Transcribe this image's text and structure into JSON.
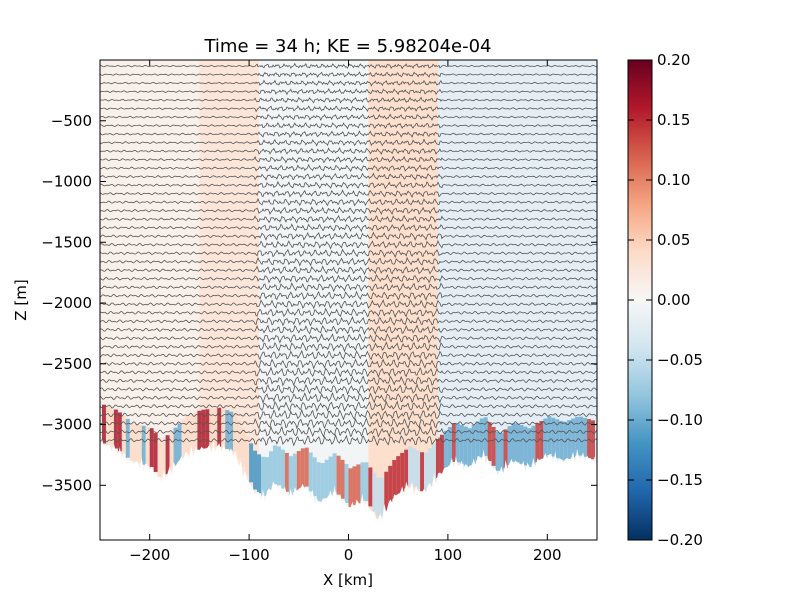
{
  "chart_data": {
    "type": "heatmap",
    "title": "Time = 34 h; KE = 5.98204e-04",
    "xlabel": "X [km]",
    "ylabel": "Z [m]",
    "xlim": [
      -250,
      250
    ],
    "ylim": [
      -3950,
      0
    ],
    "x_ticks": [
      -200,
      -100,
      0,
      100,
      200
    ],
    "x_tick_labels": [
      "−200",
      "−100",
      "0",
      "100",
      "200"
    ],
    "y_ticks": [
      -500,
      -1000,
      -1500,
      -2000,
      -2500,
      -3000,
      -3500
    ],
    "y_tick_labels": [
      "−500",
      "−1000",
      "−1500",
      "−2000",
      "−2500",
      "−3000",
      "−3500"
    ],
    "colorbar": {
      "colormap": "RdBu_r",
      "vmin": -0.2,
      "vmax": 0.2,
      "ticks": [
        0.2,
        0.15,
        0.1,
        0.05,
        0.0,
        -0.05,
        -0.1,
        -0.15,
        -0.2
      ],
      "tick_labels": [
        "0.20",
        "0.15",
        "0.10",
        "0.05",
        "0.00",
        "−0.05",
        "−0.10",
        "−0.15",
        "−0.20"
      ],
      "colors": [
        "#053061",
        "#2166ac",
        "#4393c3",
        "#92c5de",
        "#d1e5f0",
        "#f7f7f7",
        "#fddbc7",
        "#f4a582",
        "#d6604d",
        "#b2182b",
        "#67001f"
      ]
    },
    "field": {
      "description_values": "horizontal velocity anomaly; positive (red) in -150..-90 km and 20..90 km bands, negative (blue) near bottom topography and east of 100 km",
      "field_bands": [
        {
          "x0": -250,
          "x1": -150,
          "v": 0.01
        },
        {
          "x0": -150,
          "x1": -90,
          "v": 0.025
        },
        {
          "x0": -90,
          "x1": 20,
          "v": -0.005
        },
        {
          "x0": 20,
          "x1": 90,
          "v": 0.035
        },
        {
          "x0": 90,
          "x1": 250,
          "v": -0.02
        }
      ]
    },
    "contours": {
      "count": 45,
      "z_start": -50,
      "z_step": -70,
      "color": "#555555",
      "active_region_km": [
        -95,
        95
      ]
    },
    "topography_km_m": [
      [
        -250,
        -3150
      ],
      [
        -235,
        -3200
      ],
      [
        -220,
        -3300
      ],
      [
        -200,
        -3350
      ],
      [
        -190,
        -3450
      ],
      [
        -180,
        -3380
      ],
      [
        -165,
        -3250
      ],
      [
        -150,
        -3200
      ],
      [
        -130,
        -3180
      ],
      [
        -115,
        -3230
      ],
      [
        -105,
        -3400
      ],
      [
        -95,
        -3550
      ],
      [
        -85,
        -3600
      ],
      [
        -75,
        -3480
      ],
      [
        -60,
        -3580
      ],
      [
        -45,
        -3500
      ],
      [
        -30,
        -3650
      ],
      [
        -15,
        -3550
      ],
      [
        0,
        -3680
      ],
      [
        15,
        -3620
      ],
      [
        30,
        -3780
      ],
      [
        45,
        -3600
      ],
      [
        60,
        -3500
      ],
      [
        75,
        -3560
      ],
      [
        90,
        -3420
      ],
      [
        105,
        -3300
      ],
      [
        120,
        -3350
      ],
      [
        135,
        -3250
      ],
      [
        150,
        -3400
      ],
      [
        165,
        -3300
      ],
      [
        180,
        -3350
      ],
      [
        200,
        -3250
      ],
      [
        215,
        -3300
      ],
      [
        230,
        -3250
      ],
      [
        250,
        -3300
      ]
    ],
    "grid": false
  }
}
